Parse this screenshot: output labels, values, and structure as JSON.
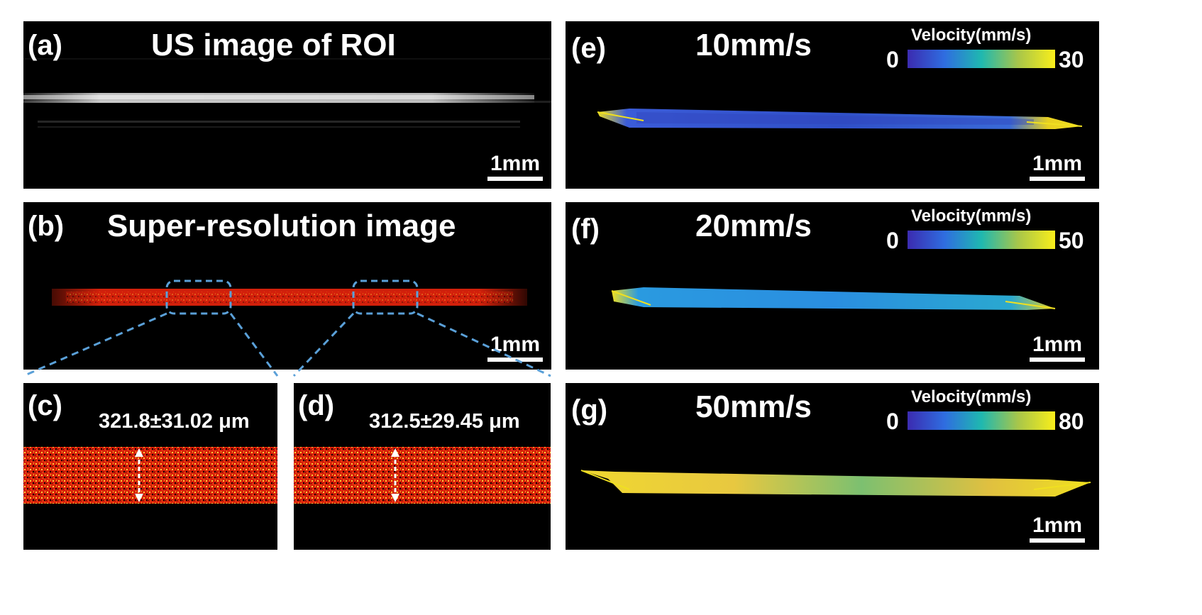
{
  "panels": {
    "a": {
      "label": "(a)",
      "title": "US image of ROI",
      "scale": "1mm"
    },
    "b": {
      "label": "(b)",
      "title": "Super-resolution image",
      "scale": "1mm"
    },
    "c": {
      "label": "(c)",
      "measurement": "321.8±31.02 μm"
    },
    "d": {
      "label": "(d)",
      "measurement": "312.5±29.45 μm"
    },
    "e": {
      "label": "(e)",
      "title": "10mm/s",
      "scale": "1mm",
      "colorbar": {
        "title": "Velocity(mm/s)",
        "min": "0",
        "max": "30"
      }
    },
    "f": {
      "label": "(f)",
      "title": "20mm/s",
      "scale": "1mm",
      "colorbar": {
        "title": "Velocity(mm/s)",
        "min": "0",
        "max": "50"
      }
    },
    "g": {
      "label": "(g)",
      "title": "50mm/s",
      "scale": "1mm",
      "colorbar": {
        "title": "Velocity(mm/s)",
        "min": "0",
        "max": "80"
      }
    }
  },
  "colors": {
    "background": "#000000",
    "vessel_red": "#e8240c",
    "dashed_box": "#5aa0d8",
    "parula_low": "#3b2bb0",
    "parula_mid": "#1fb8b0",
    "parula_high": "#f9ee1a"
  }
}
